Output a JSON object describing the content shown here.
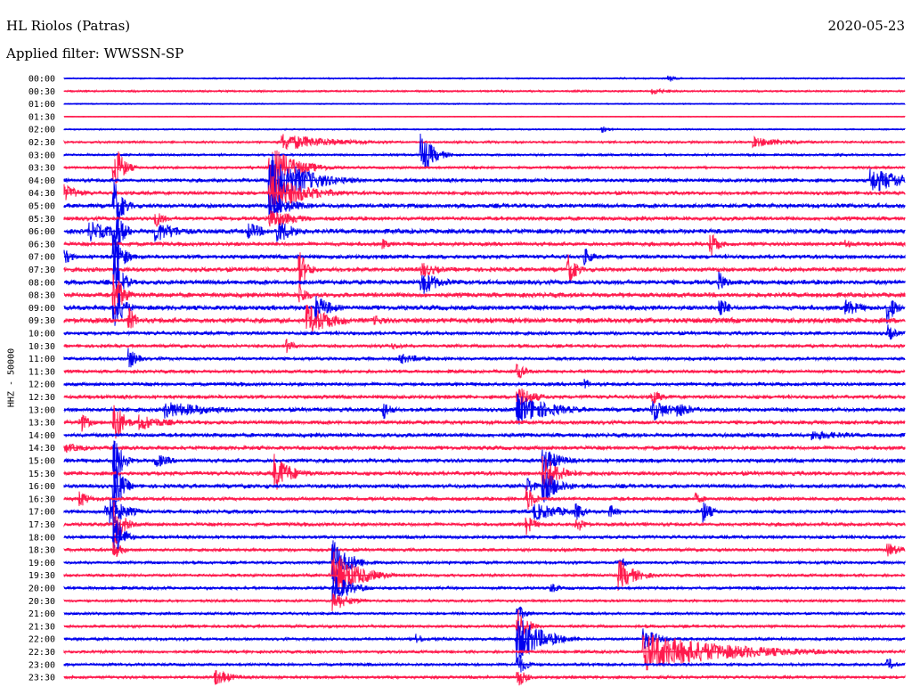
{
  "header": {
    "station": "HL Riolos (Patras)",
    "date": "2020-05-23",
    "filter": "Applied filter: WWSSN-SP"
  },
  "chart_data": {
    "type": "line",
    "title": "HL Riolos (Patras)",
    "ylabel": "HHZ - 50000",
    "colors": [
      "#0000ee",
      "#ff1a4d"
    ],
    "rows": [
      "00:00",
      "00:30",
      "01:00",
      "01:30",
      "02:00",
      "02:30",
      "03:00",
      "03:30",
      "04:00",
      "04:30",
      "05:00",
      "05:30",
      "06:00",
      "06:30",
      "07:00",
      "07:30",
      "08:00",
      "08:30",
      "09:00",
      "09:30",
      "10:00",
      "10:30",
      "11:00",
      "11:30",
      "12:00",
      "12:30",
      "13:00",
      "13:30",
      "14:00",
      "14:30",
      "15:00",
      "15:30",
      "16:00",
      "16:30",
      "17:00",
      "17:30",
      "18:00",
      "18:30",
      "19:00",
      "19:30",
      "20:00",
      "20:30",
      "21:00",
      "21:30",
      "22:00",
      "22:30",
      "23:00",
      "23:30"
    ],
    "noise": [
      0.6,
      0.8,
      0.5,
      0.3,
      0.6,
      1.0,
      1.0,
      1.2,
      1.8,
      1.8,
      2.2,
      2.0,
      2.4,
      2.0,
      2.0,
      2.2,
      2.4,
      2.4,
      2.4,
      2.6,
      1.8,
      1.6,
      1.6,
      1.6,
      1.8,
      1.8,
      2.0,
      2.0,
      2.0,
      2.0,
      2.0,
      2.0,
      2.0,
      1.8,
      1.8,
      1.8,
      1.6,
      1.6,
      1.4,
      1.4,
      1.4,
      1.2,
      1.2,
      1.4,
      1.4,
      1.4,
      1.4,
      1.4
    ],
    "events": [
      {
        "row": 0,
        "x": 0.72,
        "amp": 4,
        "dur": 0.01
      },
      {
        "row": 1,
        "x": 0.7,
        "amp": 4,
        "dur": 0.02
      },
      {
        "row": 4,
        "x": 0.64,
        "amp": 4,
        "dur": 0.01
      },
      {
        "row": 5,
        "x": 0.26,
        "amp": 10,
        "dur": 0.06
      },
      {
        "row": 5,
        "x": 0.82,
        "amp": 6,
        "dur": 0.05
      },
      {
        "row": 6,
        "x": 0.425,
        "amp": 24,
        "dur": 0.015
      },
      {
        "row": 7,
        "x": 0.06,
        "amp": 30,
        "dur": 0.01
      },
      {
        "row": 7,
        "x": 0.245,
        "amp": 26,
        "dur": 0.03
      },
      {
        "row": 8,
        "x": 0.245,
        "amp": 34,
        "dur": 0.04
      },
      {
        "row": 8,
        "x": 0.96,
        "amp": 14,
        "dur": 0.05
      },
      {
        "row": 9,
        "x": 0.0,
        "amp": 10,
        "dur": 0.02
      },
      {
        "row": 9,
        "x": 0.245,
        "amp": 22,
        "dur": 0.04
      },
      {
        "row": 10,
        "x": 0.06,
        "amp": 30,
        "dur": 0.01
      },
      {
        "row": 10,
        "x": 0.245,
        "amp": 14,
        "dur": 0.03
      },
      {
        "row": 11,
        "x": 0.11,
        "amp": 10,
        "dur": 0.01
      },
      {
        "row": 11,
        "x": 0.245,
        "amp": 12,
        "dur": 0.03
      },
      {
        "row": 12,
        "x": 0.03,
        "amp": 12,
        "dur": 0.03
      },
      {
        "row": 12,
        "x": 0.06,
        "amp": 30,
        "dur": 0.01
      },
      {
        "row": 12,
        "x": 0.11,
        "amp": 12,
        "dur": 0.03
      },
      {
        "row": 12,
        "x": 0.22,
        "amp": 10,
        "dur": 0.02
      },
      {
        "row": 12,
        "x": 0.255,
        "amp": 14,
        "dur": 0.02
      },
      {
        "row": 13,
        "x": 0.38,
        "amp": 6,
        "dur": 0.01
      },
      {
        "row": 13,
        "x": 0.77,
        "amp": 14,
        "dur": 0.01
      },
      {
        "row": 13,
        "x": 0.93,
        "amp": 6,
        "dur": 0.01
      },
      {
        "row": 14,
        "x": 0.0,
        "amp": 10,
        "dur": 0.01
      },
      {
        "row": 14,
        "x": 0.06,
        "amp": 30,
        "dur": 0.01
      },
      {
        "row": 14,
        "x": 0.62,
        "amp": 10,
        "dur": 0.01
      },
      {
        "row": 15,
        "x": 0.28,
        "amp": 22,
        "dur": 0.01
      },
      {
        "row": 15,
        "x": 0.425,
        "amp": 10,
        "dur": 0.02
      },
      {
        "row": 15,
        "x": 0.6,
        "amp": 18,
        "dur": 0.01
      },
      {
        "row": 16,
        "x": 0.06,
        "amp": 30,
        "dur": 0.01
      },
      {
        "row": 16,
        "x": 0.425,
        "amp": 16,
        "dur": 0.02
      },
      {
        "row": 16,
        "x": 0.78,
        "amp": 12,
        "dur": 0.01
      },
      {
        "row": 17,
        "x": 0.06,
        "amp": 30,
        "dur": 0.01
      },
      {
        "row": 17,
        "x": 0.28,
        "amp": 14,
        "dur": 0.01
      },
      {
        "row": 18,
        "x": 0.06,
        "amp": 30,
        "dur": 0.01
      },
      {
        "row": 18,
        "x": 0.3,
        "amp": 14,
        "dur": 0.02
      },
      {
        "row": 18,
        "x": 0.78,
        "amp": 14,
        "dur": 0.01
      },
      {
        "row": 18,
        "x": 0.93,
        "amp": 10,
        "dur": 0.02
      },
      {
        "row": 18,
        "x": 0.98,
        "amp": 18,
        "dur": 0.01
      },
      {
        "row": 19,
        "x": 0.078,
        "amp": 14,
        "dur": 0.01
      },
      {
        "row": 19,
        "x": 0.29,
        "amp": 18,
        "dur": 0.03
      },
      {
        "row": 19,
        "x": 0.37,
        "amp": 6,
        "dur": 0.02
      },
      {
        "row": 20,
        "x": 0.98,
        "amp": 10,
        "dur": 0.01
      },
      {
        "row": 21,
        "x": 0.265,
        "amp": 8,
        "dur": 0.01
      },
      {
        "row": 21,
        "x": 0.39,
        "amp": 4,
        "dur": 0.02
      },
      {
        "row": 22,
        "x": 0.4,
        "amp": 6,
        "dur": 0.03
      },
      {
        "row": 22,
        "x": 0.078,
        "amp": 12,
        "dur": 0.01
      },
      {
        "row": 23,
        "x": 0.54,
        "amp": 10,
        "dur": 0.01
      },
      {
        "row": 24,
        "x": 0.62,
        "amp": 6,
        "dur": 0.01
      },
      {
        "row": 25,
        "x": 0.54,
        "amp": 14,
        "dur": 0.02
      },
      {
        "row": 25,
        "x": 0.7,
        "amp": 10,
        "dur": 0.01
      },
      {
        "row": 26,
        "x": 0.12,
        "amp": 10,
        "dur": 0.06
      },
      {
        "row": 26,
        "x": 0.38,
        "amp": 12,
        "dur": 0.01
      },
      {
        "row": 26,
        "x": 0.54,
        "amp": 18,
        "dur": 0.04
      },
      {
        "row": 26,
        "x": 0.7,
        "amp": 14,
        "dur": 0.02
      },
      {
        "row": 26,
        "x": 0.73,
        "amp": 10,
        "dur": 0.02
      },
      {
        "row": 27,
        "x": 0.02,
        "amp": 12,
        "dur": 0.01
      },
      {
        "row": 27,
        "x": 0.06,
        "amp": 30,
        "dur": 0.01
      },
      {
        "row": 27,
        "x": 0.09,
        "amp": 10,
        "dur": 0.03
      },
      {
        "row": 28,
        "x": 0.89,
        "amp": 6,
        "dur": 0.05
      },
      {
        "row": 29,
        "x": 0.0,
        "amp": 6,
        "dur": 0.03
      },
      {
        "row": 30,
        "x": 0.06,
        "amp": 30,
        "dur": 0.01
      },
      {
        "row": 30,
        "x": 0.11,
        "amp": 8,
        "dur": 0.02
      },
      {
        "row": 30,
        "x": 0.57,
        "amp": 16,
        "dur": 0.02
      },
      {
        "row": 31,
        "x": 0.25,
        "amp": 22,
        "dur": 0.02
      },
      {
        "row": 31,
        "x": 0.57,
        "amp": 22,
        "dur": 0.02
      },
      {
        "row": 32,
        "x": 0.06,
        "amp": 30,
        "dur": 0.01
      },
      {
        "row": 32,
        "x": 0.55,
        "amp": 12,
        "dur": 0.01
      },
      {
        "row": 32,
        "x": 0.57,
        "amp": 20,
        "dur": 0.02
      },
      {
        "row": 33,
        "x": 0.02,
        "amp": 10,
        "dur": 0.01
      },
      {
        "row": 33,
        "x": 0.55,
        "amp": 16,
        "dur": 0.01
      },
      {
        "row": 33,
        "x": 0.75,
        "amp": 8,
        "dur": 0.01
      },
      {
        "row": 34,
        "x": 0.05,
        "amp": 22,
        "dur": 0.02
      },
      {
        "row": 34,
        "x": 0.56,
        "amp": 10,
        "dur": 0.04
      },
      {
        "row": 34,
        "x": 0.61,
        "amp": 10,
        "dur": 0.01
      },
      {
        "row": 34,
        "x": 0.65,
        "amp": 8,
        "dur": 0.01
      },
      {
        "row": 34,
        "x": 0.76,
        "amp": 14,
        "dur": 0.01
      },
      {
        "row": 35,
        "x": 0.06,
        "amp": 30,
        "dur": 0.01
      },
      {
        "row": 35,
        "x": 0.55,
        "amp": 12,
        "dur": 0.01
      },
      {
        "row": 35,
        "x": 0.61,
        "amp": 10,
        "dur": 0.01
      },
      {
        "row": 36,
        "x": 0.06,
        "amp": 30,
        "dur": 0.01
      },
      {
        "row": 37,
        "x": 0.06,
        "amp": 10,
        "dur": 0.01
      },
      {
        "row": 37,
        "x": 0.98,
        "amp": 8,
        "dur": 0.02
      },
      {
        "row": 38,
        "x": 0.32,
        "amp": 26,
        "dur": 0.02
      },
      {
        "row": 38,
        "x": 0.66,
        "amp": 8,
        "dur": 0.01
      },
      {
        "row": 39,
        "x": 0.32,
        "amp": 28,
        "dur": 0.03
      },
      {
        "row": 39,
        "x": 0.66,
        "amp": 18,
        "dur": 0.02
      },
      {
        "row": 40,
        "x": 0.32,
        "amp": 20,
        "dur": 0.02
      },
      {
        "row": 40,
        "x": 0.58,
        "amp": 6,
        "dur": 0.01
      },
      {
        "row": 41,
        "x": 0.32,
        "amp": 12,
        "dur": 0.02
      },
      {
        "row": 42,
        "x": 0.54,
        "amp": 10,
        "dur": 0.01
      },
      {
        "row": 43,
        "x": 0.54,
        "amp": 26,
        "dur": 0.01
      },
      {
        "row": 44,
        "x": 0.54,
        "amp": 26,
        "dur": 0.03
      },
      {
        "row": 44,
        "x": 0.42,
        "amp": 6,
        "dur": 0.01
      },
      {
        "row": 44,
        "x": 0.69,
        "amp": 12,
        "dur": 0.02
      },
      {
        "row": 45,
        "x": 0.69,
        "amp": 22,
        "dur": 0.1
      },
      {
        "row": 46,
        "x": 0.54,
        "amp": 14,
        "dur": 0.01
      },
      {
        "row": 46,
        "x": 0.98,
        "amp": 8,
        "dur": 0.01
      },
      {
        "row": 47,
        "x": 0.18,
        "amp": 10,
        "dur": 0.02
      },
      {
        "row": 47,
        "x": 0.54,
        "amp": 12,
        "dur": 0.01
      }
    ]
  }
}
